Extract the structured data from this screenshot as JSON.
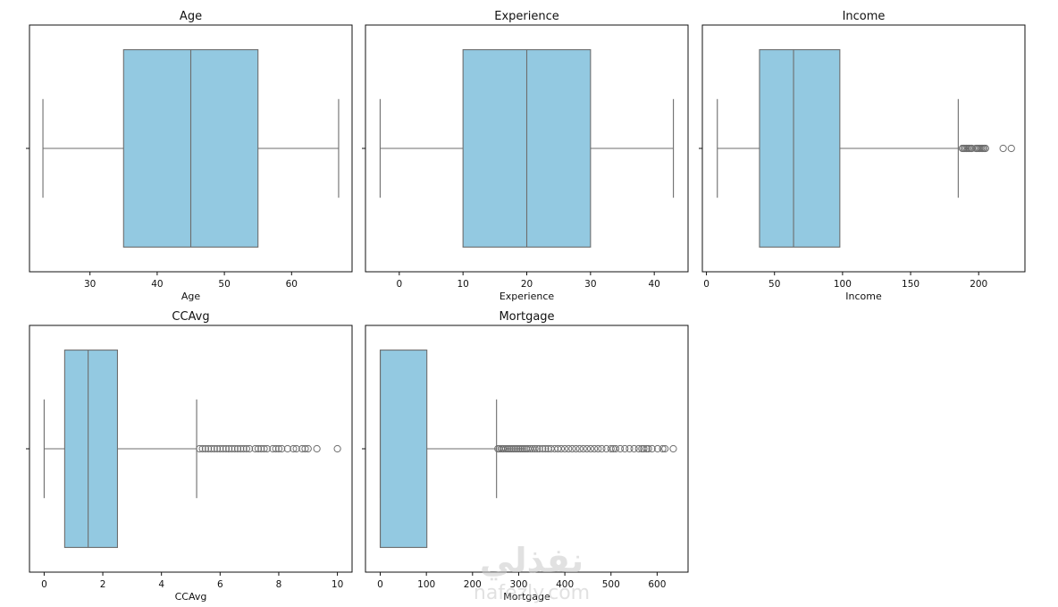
{
  "chart_data": [
    {
      "type": "boxplot",
      "title": "Age",
      "xlabel": "Age",
      "xlim": [
        21,
        69
      ],
      "xticks": [
        30,
        40,
        50,
        60
      ],
      "stats": {
        "whisker_low": 23,
        "q1": 35,
        "median": 45,
        "q3": 55,
        "whisker_high": 67
      },
      "outliers": [],
      "box_color": "#93c9e1"
    },
    {
      "type": "boxplot",
      "title": "Experience",
      "xlabel": "Experience",
      "xlim": [
        -5.3,
        45.3
      ],
      "xticks": [
        0,
        10,
        20,
        30,
        40
      ],
      "stats": {
        "whisker_low": -3,
        "q1": 10,
        "median": 20,
        "q3": 30,
        "whisker_high": 43
      },
      "outliers": [],
      "box_color": "#93c9e1"
    },
    {
      "type": "boxplot",
      "title": "Income",
      "xlabel": "Income",
      "xlim": [
        -3,
        234
      ],
      "xticks": [
        0,
        50,
        100,
        150,
        200
      ],
      "stats": {
        "whisker_low": 8,
        "q1": 39,
        "median": 64,
        "q3": 98,
        "whisker_high": 185
      },
      "outliers": [
        188,
        189,
        190,
        191,
        192,
        193,
        194,
        195,
        198,
        199,
        200,
        201,
        202,
        203,
        204,
        205,
        218,
        224
      ],
      "box_color": "#93c9e1"
    },
    {
      "type": "boxplot",
      "title": "CCAvg",
      "xlabel": "CCAvg",
      "xlim": [
        -0.5,
        10.5
      ],
      "xticks": [
        0,
        2,
        4,
        6,
        8,
        10
      ],
      "stats": {
        "whisker_low": 0,
        "q1": 0.7,
        "median": 1.5,
        "q3": 2.5,
        "whisker_high": 5.2
      },
      "outliers": [
        5.3,
        5.4,
        5.5,
        5.6,
        5.7,
        5.8,
        5.9,
        6.0,
        6.1,
        6.2,
        6.3,
        6.4,
        6.5,
        6.6,
        6.7,
        6.8,
        6.9,
        7.0,
        7.2,
        7.3,
        7.4,
        7.5,
        7.6,
        7.8,
        7.9,
        8.0,
        8.1,
        8.3,
        8.5,
        8.6,
        8.8,
        8.9,
        9.0,
        9.3,
        10.0
      ],
      "box_color": "#93c9e1"
    },
    {
      "type": "boxplot",
      "title": "Mortgage",
      "xlabel": "Mortgage",
      "xlim": [
        -32,
        667
      ],
      "xticks": [
        0,
        100,
        200,
        300,
        400,
        500,
        600
      ],
      "stats": {
        "whisker_low": 0,
        "q1": 0,
        "median": 0,
        "q3": 101,
        "whisker_high": 252
      },
      "outliers": [
        255,
        258,
        262,
        265,
        268,
        272,
        276,
        280,
        284,
        288,
        292,
        296,
        300,
        304,
        308,
        312,
        316,
        320,
        325,
        330,
        335,
        340,
        345,
        352,
        358,
        364,
        370,
        378,
        385,
        392,
        400,
        408,
        416,
        424,
        432,
        440,
        448,
        456,
        464,
        472,
        480,
        490,
        500,
        505,
        510,
        520,
        530,
        540,
        550,
        560,
        567,
        571,
        577,
        581,
        589,
        601,
        612,
        617,
        635
      ],
      "box_color": "#93c9e1"
    }
  ]
}
